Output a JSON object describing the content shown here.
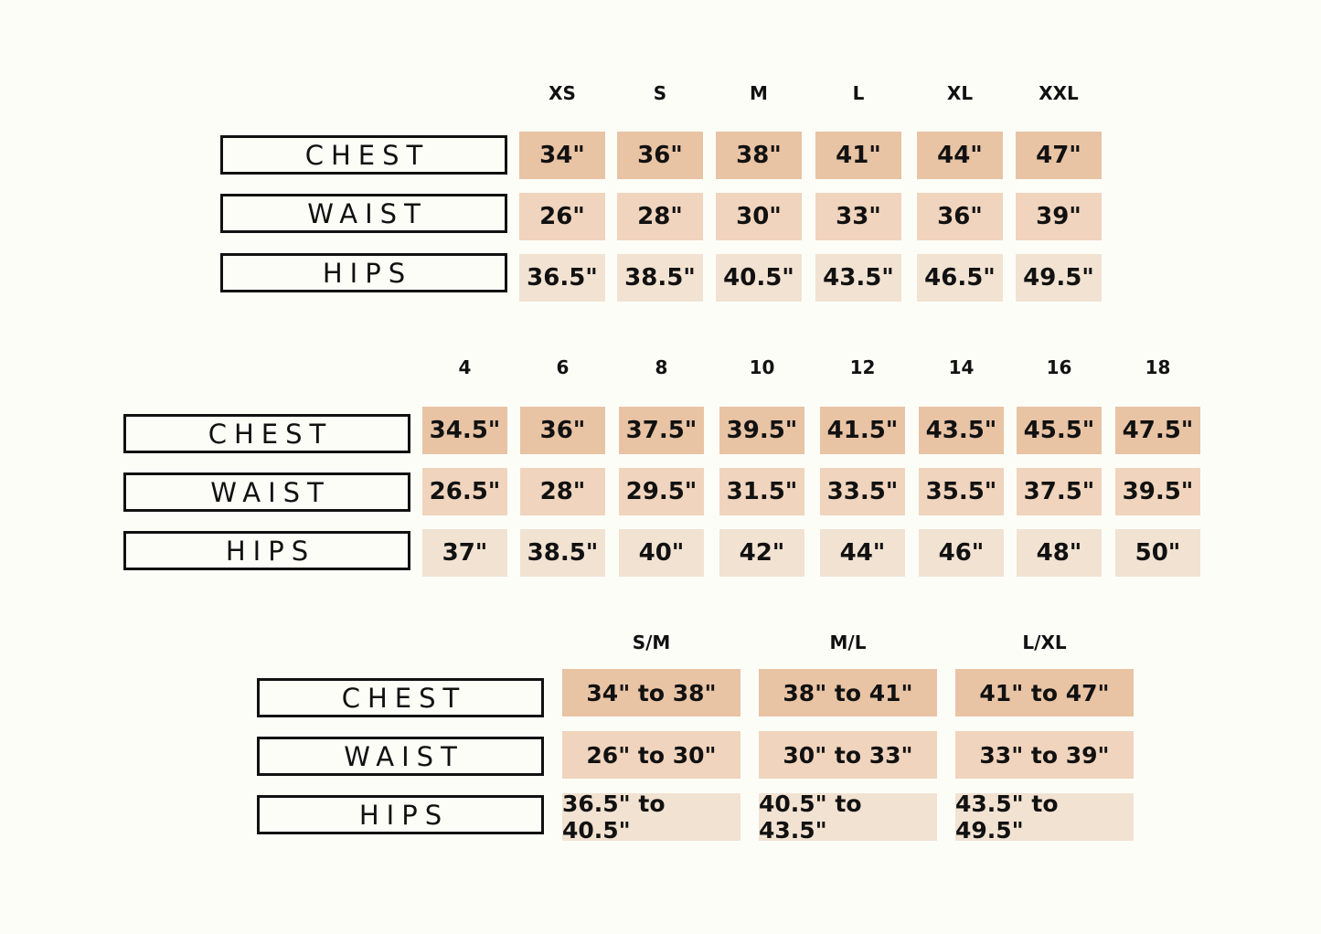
{
  "colors": {
    "background": "#fdfdf8",
    "chest": "#e8c3a4",
    "waist": "#f0d4bd",
    "hips": "#f2e2d2"
  },
  "row_labels": [
    "CHEST",
    "WAIST",
    "HIPS"
  ],
  "tables": [
    {
      "sizes": [
        "XS",
        "S",
        "M",
        "L",
        "XL",
        "XXL"
      ],
      "chest": [
        "34\"",
        "36\"",
        "38\"",
        "41\"",
        "44\"",
        "47\""
      ],
      "waist": [
        "26\"",
        "28\"",
        "30\"",
        "33\"",
        "36\"",
        "39\""
      ],
      "hips": [
        "36.5\"",
        "38.5\"",
        "40.5\"",
        "43.5\"",
        "46.5\"",
        "49.5\""
      ]
    },
    {
      "sizes": [
        "4",
        "6",
        "8",
        "10",
        "12",
        "14",
        "16",
        "18"
      ],
      "chest": [
        "34.5\"",
        "36\"",
        "37.5\"",
        "39.5\"",
        "41.5\"",
        "43.5\"",
        "45.5\"",
        "47.5\""
      ],
      "waist": [
        "26.5\"",
        "28\"",
        "29.5\"",
        "31.5\"",
        "33.5\"",
        "35.5\"",
        "37.5\"",
        "39.5\""
      ],
      "hips": [
        "37\"",
        "38.5\"",
        "40\"",
        "42\"",
        "44\"",
        "46\"",
        "48\"",
        "50\""
      ]
    },
    {
      "sizes": [
        "S/M",
        "M/L",
        "L/XL"
      ],
      "chest": [
        "34\" to 38\"",
        "38\" to 41\"",
        "41\" to 47\""
      ],
      "waist": [
        "26\" to 30\"",
        "30\" to 33\"",
        "33\" to 39\""
      ],
      "hips": [
        "36.5\" to 40.5\"",
        "40.5\" to 43.5\"",
        "43.5\" to 49.5\""
      ]
    }
  ]
}
